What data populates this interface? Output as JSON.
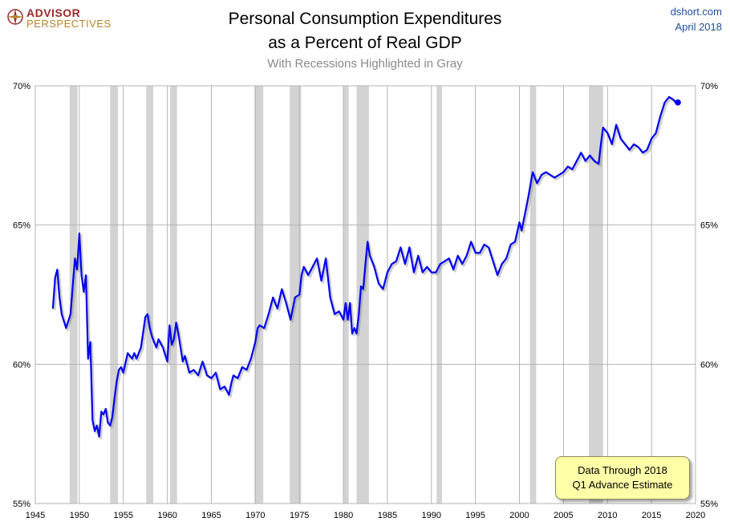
{
  "logo": {
    "line1": "ADVISOR",
    "line2": "PERSPECTIVES"
  },
  "source": {
    "site": "dshort.com",
    "date": "April 2018"
  },
  "chart_data": {
    "type": "line",
    "title": "Personal Consumption Expenditures",
    "title_line2": "as a Percent of Real GDP",
    "subtitle": "With Recessions Highlighted in Gray",
    "xlim": [
      1945,
      2020
    ],
    "ylim": [
      55,
      70
    ],
    "x_ticks": [
      1945,
      1950,
      1955,
      1960,
      1965,
      1970,
      1975,
      1980,
      1985,
      1990,
      1995,
      2000,
      2005,
      2010,
      2015,
      2020
    ],
    "y_ticks": [
      55,
      60,
      65,
      70
    ],
    "y_tick_labels": [
      "55%",
      "60%",
      "65%",
      "70%"
    ],
    "grid": true,
    "recessions": [
      [
        1948.9,
        1949.8
      ],
      [
        1953.5,
        1954.4
      ],
      [
        1957.6,
        1958.4
      ],
      [
        1960.3,
        1961.1
      ],
      [
        1969.9,
        1970.9
      ],
      [
        1973.9,
        1975.2
      ],
      [
        1980.0,
        1980.6
      ],
      [
        1981.5,
        1982.9
      ],
      [
        1990.6,
        1991.2
      ],
      [
        2001.2,
        2001.9
      ],
      [
        2007.9,
        2009.5
      ]
    ],
    "annotation": [
      "Data Through 2018",
      "Q1 Advance Estimate"
    ],
    "series": [
      {
        "name": "PCE as % of Real GDP",
        "color": "#0000ee",
        "x": [
          1947.0,
          1947.25,
          1947.5,
          1947.75,
          1948.0,
          1948.5,
          1949.0,
          1949.25,
          1949.5,
          1949.75,
          1950.0,
          1950.25,
          1950.5,
          1950.75,
          1951.0,
          1951.25,
          1951.5,
          1951.75,
          1952.0,
          1952.25,
          1952.5,
          1952.75,
          1953.0,
          1953.25,
          1953.5,
          1953.75,
          1954.0,
          1954.25,
          1954.5,
          1954.75,
          1955.0,
          1955.5,
          1956.0,
          1956.25,
          1956.5,
          1956.75,
          1957.0,
          1957.5,
          1957.75,
          1958.0,
          1958.25,
          1958.5,
          1958.75,
          1959.0,
          1959.5,
          1960.0,
          1960.25,
          1960.5,
          1960.75,
          1961.0,
          1961.25,
          1961.5,
          1961.75,
          1962.0,
          1962.5,
          1963.0,
          1963.5,
          1964.0,
          1964.5,
          1965.0,
          1965.5,
          1966.0,
          1966.5,
          1967.0,
          1967.25,
          1967.5,
          1968.0,
          1968.5,
          1969.0,
          1969.5,
          1970.0,
          1970.25,
          1970.5,
          1971.0,
          1971.5,
          1972.0,
          1972.5,
          1973.0,
          1973.5,
          1974.0,
          1974.5,
          1975.0,
          1975.25,
          1975.5,
          1976.0,
          1976.5,
          1977.0,
          1977.5,
          1978.0,
          1978.5,
          1979.0,
          1979.5,
          1980.0,
          1980.25,
          1980.5,
          1980.75,
          1981.0,
          1981.25,
          1981.5,
          1981.75,
          1982.0,
          1982.25,
          1982.5,
          1982.75,
          1983.0,
          1983.5,
          1984.0,
          1984.5,
          1985.0,
          1985.5,
          1986.0,
          1986.5,
          1987.0,
          1987.5,
          1988.0,
          1988.5,
          1989.0,
          1989.5,
          1990.0,
          1990.5,
          1991.0,
          1991.5,
          1992.0,
          1992.5,
          1993.0,
          1993.5,
          1994.0,
          1994.5,
          1995.0,
          1995.5,
          1996.0,
          1996.5,
          1997.0,
          1997.5,
          1998.0,
          1998.5,
          1999.0,
          1999.5,
          2000.0,
          2000.25,
          2000.5,
          2000.75,
          2001.0,
          2001.5,
          2002.0,
          2002.5,
          2003.0,
          2003.5,
          2004.0,
          2004.5,
          2005.0,
          2005.5,
          2006.0,
          2006.5,
          2007.0,
          2007.5,
          2008.0,
          2008.5,
          2009.0,
          2009.25,
          2009.5,
          2010.0,
          2010.5,
          2011.0,
          2011.5,
          2012.0,
          2012.5,
          2013.0,
          2013.5,
          2014.0,
          2014.5,
          2015.0,
          2015.5,
          2016.0,
          2016.5,
          2017.0,
          2017.5,
          2017.75,
          2018.0
        ],
        "values": [
          62.0,
          63.1,
          63.4,
          62.4,
          61.8,
          61.3,
          61.8,
          62.8,
          63.8,
          63.4,
          64.7,
          63.2,
          62.6,
          63.2,
          60.2,
          60.8,
          58.0,
          57.6,
          57.8,
          57.4,
          58.3,
          58.2,
          58.4,
          57.9,
          57.8,
          58.1,
          58.8,
          59.4,
          59.8,
          59.9,
          59.7,
          60.4,
          60.2,
          60.4,
          60.2,
          60.4,
          60.6,
          61.7,
          61.8,
          61.3,
          61.0,
          60.8,
          60.6,
          60.9,
          60.6,
          60.1,
          61.4,
          60.7,
          60.9,
          61.5,
          61.1,
          60.6,
          60.1,
          60.3,
          59.7,
          59.8,
          59.6,
          60.1,
          59.6,
          59.5,
          59.7,
          59.1,
          59.2,
          58.9,
          59.3,
          59.6,
          59.5,
          59.9,
          59.8,
          60.2,
          60.8,
          61.3,
          61.4,
          61.3,
          61.8,
          62.4,
          62.0,
          62.7,
          62.2,
          61.6,
          62.4,
          62.5,
          63.2,
          63.5,
          63.2,
          63.5,
          63.8,
          63.0,
          63.8,
          62.4,
          61.8,
          61.9,
          61.6,
          62.2,
          61.6,
          62.2,
          61.1,
          61.3,
          61.1,
          61.8,
          62.8,
          62.7,
          63.6,
          64.4,
          63.9,
          63.5,
          62.9,
          62.7,
          63.3,
          63.6,
          63.7,
          64.2,
          63.6,
          64.2,
          63.3,
          63.9,
          63.3,
          63.5,
          63.3,
          63.3,
          63.6,
          63.7,
          63.8,
          63.4,
          63.9,
          63.6,
          63.9,
          64.4,
          64.0,
          64.0,
          64.3,
          64.2,
          63.7,
          63.2,
          63.6,
          63.8,
          64.3,
          64.4,
          65.1,
          64.8,
          65.2,
          65.6,
          66.0,
          66.9,
          66.5,
          66.8,
          66.9,
          66.8,
          66.7,
          66.8,
          66.9,
          67.1,
          67.0,
          67.3,
          67.6,
          67.3,
          67.5,
          67.3,
          67.2,
          67.9,
          68.5,
          68.3,
          67.9,
          68.6,
          68.1,
          67.9,
          67.7,
          67.9,
          67.8,
          67.6,
          67.7,
          68.1,
          68.3,
          68.9,
          69.4,
          69.6,
          69.5,
          69.4,
          69.4
        ]
      }
    ]
  }
}
